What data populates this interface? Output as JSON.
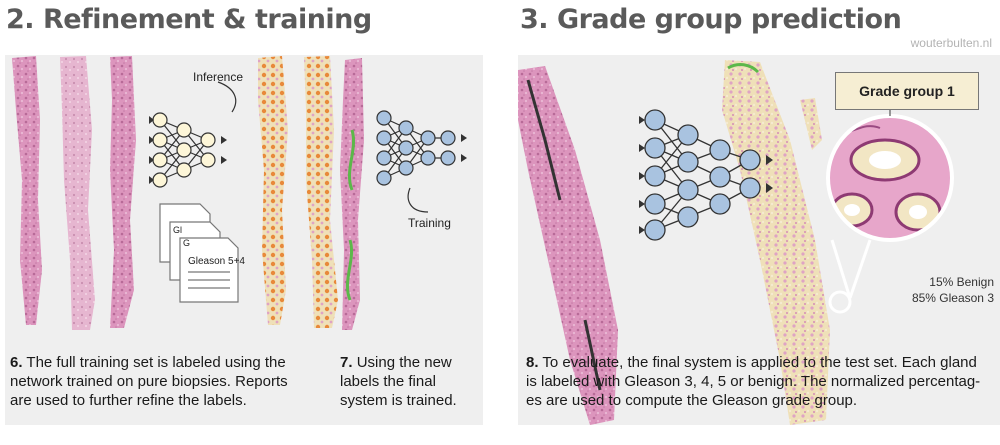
{
  "titles": {
    "left": "2. Refinement & training",
    "right": "3. Grade group prediction"
  },
  "watermark": "wouterbulten.nl",
  "labels": {
    "inference": "Inference",
    "training": "Training",
    "report_back": "Gl",
    "report_mid": "G",
    "report_front": "Gleason 5+4"
  },
  "grade_group": "Grade group 1",
  "percentages": {
    "benign": "15% Benign",
    "gleason3": "85% Gleason 3"
  },
  "captions": {
    "step6_num": "6.",
    "step6_line1": "The full training set is labeled using the",
    "step6_line2": "network trained on pure biopsies. Reports",
    "step6_line3": "are used to further refine the labels.",
    "step7_num": "7.",
    "step7_line1": "Using the new",
    "step7_line2": "labels the final",
    "step7_line3": "system is trained.",
    "step8_num": "8.",
    "step8_line1": "To evaluate, the final system is applied to the test set. Each gland",
    "step8_line2": "is labeled with Gleason 3, 4, 5 or benign. The normalized percentag-",
    "step8_line3": "es are used to compute the Gleason grade group."
  },
  "colors": {
    "panel": "#efefef",
    "tissue_pink": "#d98cb6",
    "tissue_light": "#e8b8d2",
    "label_beige": "#efe0b8",
    "label_orange": "#e88a3c",
    "label_green": "#5cb84a",
    "node_yellow": "#fdf6d8",
    "node_blue": "#a9c3e0"
  },
  "icons": [
    "neural-network-icon",
    "report-document-icon",
    "tissue-core-image",
    "magnifier-inset"
  ]
}
